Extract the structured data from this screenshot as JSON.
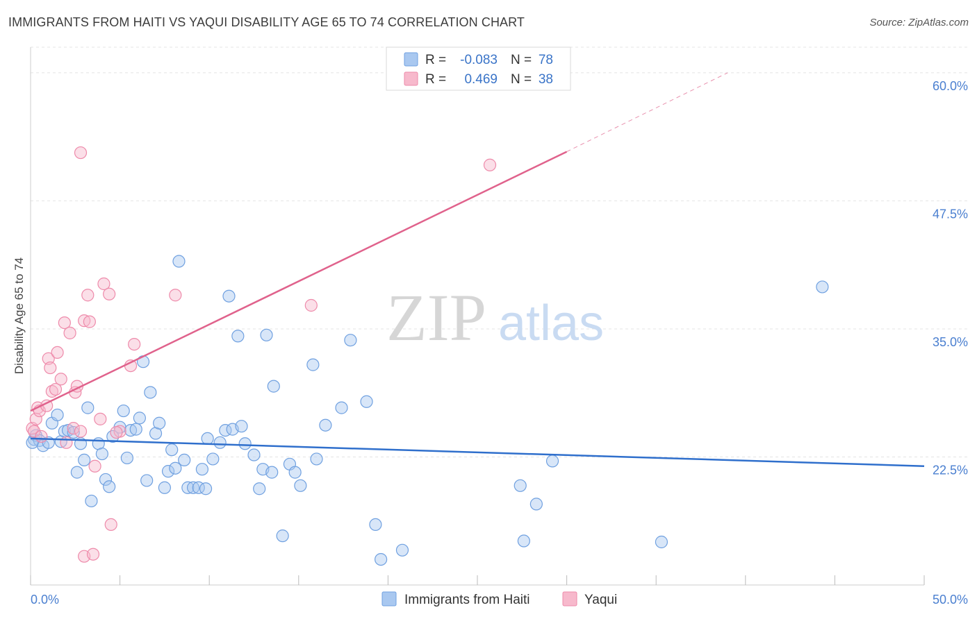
{
  "title": "IMMIGRANTS FROM HAITI VS YAQUI DISABILITY AGE 65 TO 74 CORRELATION CHART",
  "source": "Source: ZipAtlas.com",
  "watermark": {
    "zip": "ZIP",
    "atlas": "atlas"
  },
  "legend": {
    "rows": [
      {
        "r_label": "R =",
        "r_value": "-0.083",
        "n_label": "N =",
        "n_value": "78",
        "color": "#a9c8f0",
        "stroke": "#6fa0e0"
      },
      {
        "r_label": "R =",
        "r_value": "0.469",
        "n_label": "N =",
        "n_value": "38",
        "color": "#f7b9cc",
        "stroke": "#ee8aaa"
      }
    ]
  },
  "bottom_legend": [
    {
      "label": "Immigrants from Haiti",
      "color": "#a9c8f0",
      "stroke": "#6fa0e0"
    },
    {
      "label": "Yaqui",
      "color": "#f7b9cc",
      "stroke": "#ee8aaa"
    }
  ],
  "chart_data": {
    "type": "scatter",
    "title": "IMMIGRANTS FROM HAITI VS YAQUI DISABILITY AGE 65 TO 74 CORRELATION CHART",
    "xlabel": "",
    "ylabel": "Disability Age 65 to 74",
    "xlim": [
      0,
      50
    ],
    "ylim": [
      10,
      62.5
    ],
    "x_tick_labels": [
      {
        "value": 0,
        "label": "0.0%"
      },
      {
        "value": 50,
        "label": "50.0%"
      }
    ],
    "y_tick_labels": [
      {
        "value": 22.5,
        "label": "22.5%"
      },
      {
        "value": 35,
        "label": "35.0%"
      },
      {
        "value": 47.5,
        "label": "47.5%"
      },
      {
        "value": 60,
        "label": "60.0%"
      }
    ],
    "grid": true,
    "legend_position": "top-center",
    "series": [
      {
        "name": "Immigrants from Haiti",
        "color": "#a9c8f0",
        "stroke": "#6fa0e0",
        "trend": {
          "x": [
            0,
            50
          ],
          "y": [
            24.3,
            21.6
          ],
          "color": "#2f6fcc"
        },
        "points": [
          [
            0.2,
            24.2
          ],
          [
            0.3,
            24.6
          ],
          [
            0.5,
            24.1
          ],
          [
            0.7,
            23.6
          ],
          [
            1.0,
            23.9
          ],
          [
            1.2,
            25.8
          ],
          [
            1.5,
            26.6
          ],
          [
            1.7,
            24.0
          ],
          [
            1.9,
            25.0
          ],
          [
            2.1,
            25.1
          ],
          [
            2.4,
            24.9
          ],
          [
            2.8,
            23.8
          ],
          [
            3.0,
            22.2
          ],
          [
            3.2,
            27.3
          ],
          [
            2.6,
            21.0
          ],
          [
            3.4,
            18.2
          ],
          [
            3.8,
            23.8
          ],
          [
            4.0,
            22.8
          ],
          [
            4.2,
            20.3
          ],
          [
            4.4,
            19.6
          ],
          [
            4.6,
            24.5
          ],
          [
            5.0,
            25.4
          ],
          [
            5.2,
            27.0
          ],
          [
            5.4,
            22.4
          ],
          [
            5.6,
            25.1
          ],
          [
            5.9,
            25.2
          ],
          [
            6.1,
            26.3
          ],
          [
            6.3,
            31.8
          ],
          [
            6.5,
            20.2
          ],
          [
            6.7,
            28.8
          ],
          [
            7.0,
            24.8
          ],
          [
            7.2,
            25.8
          ],
          [
            7.5,
            19.5
          ],
          [
            7.7,
            21.1
          ],
          [
            7.9,
            23.2
          ],
          [
            8.1,
            21.4
          ],
          [
            8.3,
            41.6
          ],
          [
            8.6,
            22.2
          ],
          [
            8.8,
            19.5
          ],
          [
            9.1,
            19.5
          ],
          [
            9.4,
            19.5
          ],
          [
            9.6,
            21.3
          ],
          [
            9.8,
            19.4
          ],
          [
            9.9,
            24.3
          ],
          [
            10.2,
            22.3
          ],
          [
            10.6,
            23.9
          ],
          [
            10.9,
            25.1
          ],
          [
            11.1,
            38.2
          ],
          [
            11.3,
            25.2
          ],
          [
            11.8,
            25.5
          ],
          [
            12.0,
            23.8
          ],
          [
            11.6,
            34.3
          ],
          [
            12.5,
            22.7
          ],
          [
            12.8,
            19.4
          ],
          [
            13.0,
            21.3
          ],
          [
            13.5,
            21.0
          ],
          [
            13.2,
            34.4
          ],
          [
            13.6,
            29.4
          ],
          [
            14.1,
            14.8
          ],
          [
            14.5,
            21.8
          ],
          [
            14.8,
            21.0
          ],
          [
            15.1,
            19.7
          ],
          [
            15.8,
            31.5
          ],
          [
            16.0,
            22.3
          ],
          [
            16.5,
            25.6
          ],
          [
            17.4,
            27.3
          ],
          [
            17.9,
            33.9
          ],
          [
            18.8,
            27.9
          ],
          [
            19.3,
            15.9
          ],
          [
            19.6,
            12.5
          ],
          [
            20.8,
            13.4
          ],
          [
            27.4,
            19.7
          ],
          [
            27.6,
            14.3
          ],
          [
            28.3,
            17.9
          ],
          [
            29.2,
            22.1
          ],
          [
            35.3,
            14.2
          ],
          [
            44.3,
            39.1
          ],
          [
            0.1,
            23.9
          ]
        ]
      },
      {
        "name": "Yaqui",
        "color": "#f7b9cc",
        "stroke": "#ee8aaa",
        "trend": {
          "x": [
            0,
            30
          ],
          "y": [
            27.0,
            52.3
          ],
          "dash_to": {
            "x": 39,
            "y": 60.0
          },
          "color": "#e0628c"
        },
        "points": [
          [
            0.1,
            25.3
          ],
          [
            0.2,
            25.0
          ],
          [
            0.3,
            26.2
          ],
          [
            0.4,
            27.3
          ],
          [
            0.5,
            27.0
          ],
          [
            0.6,
            24.5
          ],
          [
            0.9,
            27.5
          ],
          [
            1.0,
            32.1
          ],
          [
            1.1,
            31.2
          ],
          [
            1.2,
            28.9
          ],
          [
            1.4,
            29.1
          ],
          [
            1.5,
            32.7
          ],
          [
            1.7,
            30.1
          ],
          [
            1.9,
            35.6
          ],
          [
            2.0,
            23.9
          ],
          [
            2.2,
            34.6
          ],
          [
            2.4,
            25.3
          ],
          [
            2.5,
            28.8
          ],
          [
            2.6,
            29.4
          ],
          [
            2.8,
            25.0
          ],
          [
            3.0,
            35.8
          ],
          [
            3.2,
            38.3
          ],
          [
            3.3,
            35.7
          ],
          [
            2.8,
            52.2
          ],
          [
            3.0,
            12.8
          ],
          [
            3.5,
            13.0
          ],
          [
            3.6,
            21.6
          ],
          [
            3.9,
            26.2
          ],
          [
            4.1,
            39.4
          ],
          [
            4.4,
            38.4
          ],
          [
            4.5,
            15.9
          ],
          [
            5.0,
            25.0
          ],
          [
            5.6,
            31.4
          ],
          [
            5.8,
            33.5
          ],
          [
            8.1,
            38.3
          ],
          [
            15.7,
            37.3
          ],
          [
            25.7,
            51.0
          ],
          [
            4.8,
            24.9
          ]
        ]
      }
    ]
  }
}
